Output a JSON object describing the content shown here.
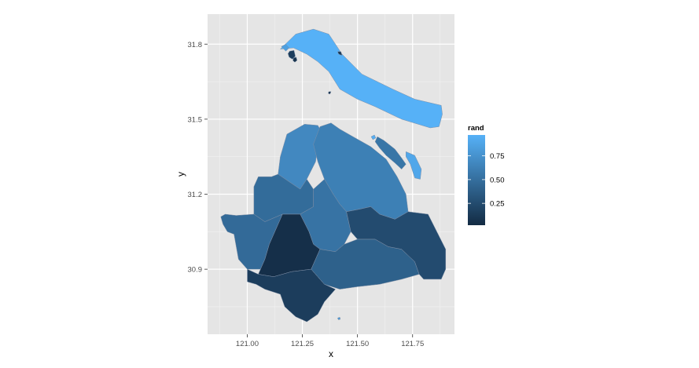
{
  "chart_data": {
    "type": "choropleth",
    "xlabel": "x",
    "ylabel": "y",
    "xlim": [
      120.82,
      121.94
    ],
    "ylim": [
      30.64,
      31.92
    ],
    "x_ticks": [
      121.0,
      121.25,
      121.5,
      121.75
    ],
    "x_tick_labels": [
      "121.00",
      "121.25",
      "121.50",
      "121.75"
    ],
    "y_ticks": [
      30.9,
      31.2,
      31.5,
      31.8
    ],
    "y_tick_labels": [
      "30.9",
      "31.2",
      "31.5",
      "31.8"
    ],
    "grid": true,
    "legend": {
      "title": "rand",
      "position": "right",
      "ticks": [
        0.25,
        0.5,
        0.75
      ],
      "tick_labels": [
        "0.25",
        "0.50",
        "0.75"
      ],
      "range": [
        0.02,
        0.97
      ],
      "color_low": "#132b43",
      "color_high": "#56b1f7"
    },
    "regions": [
      {
        "id": "chongming-island",
        "value": 0.97,
        "outline": [
          [
            121.15,
            31.78
          ],
          [
            121.22,
            31.84
          ],
          [
            121.3,
            31.86
          ],
          [
            121.37,
            31.84
          ],
          [
            121.43,
            31.76
          ],
          [
            121.52,
            31.68
          ],
          [
            121.66,
            31.62
          ],
          [
            121.76,
            31.58
          ],
          [
            121.88,
            31.555
          ],
          [
            121.885,
            31.52
          ],
          [
            121.87,
            31.47
          ],
          [
            121.83,
            31.465
          ],
          [
            121.7,
            31.5
          ],
          [
            121.58,
            31.55
          ],
          [
            121.5,
            31.58
          ],
          [
            121.42,
            31.62
          ],
          [
            121.37,
            31.69
          ],
          [
            121.32,
            31.73
          ],
          [
            121.27,
            31.76
          ],
          [
            121.21,
            31.785
          ]
        ]
      },
      {
        "id": "island-west-tip",
        "value": 0.85,
        "outline": [
          [
            121.155,
            31.79
          ],
          [
            121.175,
            31.8
          ],
          [
            121.19,
            31.785
          ],
          [
            121.175,
            31.772
          ]
        ]
      },
      {
        "id": "small-island-west",
        "value": 0.15,
        "outline": [
          [
            121.192,
            31.772
          ],
          [
            121.212,
            31.775
          ],
          [
            121.218,
            31.752
          ],
          [
            121.205,
            31.74
          ],
          [
            121.19,
            31.748
          ],
          [
            121.185,
            31.762
          ]
        ]
      },
      {
        "id": "small-island-east",
        "value": 0.08,
        "outline": [
          [
            121.21,
            31.745
          ],
          [
            121.222,
            31.748
          ],
          [
            121.226,
            31.735
          ],
          [
            121.216,
            31.728
          ],
          [
            121.207,
            31.734
          ]
        ]
      },
      {
        "id": "islet-north",
        "value": 0.12,
        "outline": [
          [
            121.41,
            31.77
          ],
          [
            121.425,
            31.77
          ],
          [
            121.43,
            31.755
          ],
          [
            121.415,
            31.76
          ]
        ]
      },
      {
        "id": "islet-center",
        "value": 0.08,
        "outline": [
          [
            121.37,
            31.61
          ],
          [
            121.38,
            31.61
          ],
          [
            121.375,
            31.6
          ],
          [
            121.367,
            31.603
          ]
        ]
      },
      {
        "id": "changxing-island",
        "value": 0.55,
        "outline": [
          [
            121.59,
            31.43
          ],
          [
            121.62,
            31.415
          ],
          [
            121.67,
            31.38
          ],
          [
            121.7,
            31.345
          ],
          [
            121.72,
            31.32
          ],
          [
            121.7,
            31.3
          ],
          [
            121.67,
            31.325
          ],
          [
            121.63,
            31.355
          ],
          [
            121.6,
            31.385
          ],
          [
            121.58,
            31.41
          ]
        ]
      },
      {
        "id": "hengsha-island",
        "value": 0.9,
        "outline": [
          [
            121.72,
            31.37
          ],
          [
            121.76,
            31.355
          ],
          [
            121.79,
            31.3
          ],
          [
            121.785,
            31.26
          ],
          [
            121.76,
            31.265
          ],
          [
            121.74,
            31.32
          ],
          [
            121.72,
            31.35
          ]
        ]
      },
      {
        "id": "islet-yangtze",
        "value": 0.95,
        "outline": [
          [
            121.562,
            31.43
          ],
          [
            121.577,
            31.437
          ],
          [
            121.583,
            31.425
          ],
          [
            121.57,
            31.418
          ]
        ]
      },
      {
        "id": "baoshan",
        "value": 0.68,
        "outline": [
          [
            121.14,
            31.28
          ],
          [
            121.15,
            31.35
          ],
          [
            121.18,
            31.44
          ],
          [
            121.26,
            31.48
          ],
          [
            121.32,
            31.475
          ],
          [
            121.33,
            31.46
          ],
          [
            121.31,
            31.33
          ],
          [
            121.27,
            31.26
          ],
          [
            121.24,
            31.22
          ],
          [
            121.19,
            31.25
          ]
        ]
      },
      {
        "id": "pudong-north",
        "value": 0.62,
        "outline": [
          [
            121.3,
            31.4
          ],
          [
            121.33,
            31.47
          ],
          [
            121.38,
            31.485
          ],
          [
            121.42,
            31.46
          ],
          [
            121.48,
            31.43
          ],
          [
            121.56,
            31.39
          ],
          [
            121.63,
            31.34
          ],
          [
            121.68,
            31.27
          ],
          [
            121.72,
            31.2
          ],
          [
            121.73,
            31.13
          ],
          [
            121.67,
            31.1
          ],
          [
            121.6,
            31.12
          ],
          [
            121.56,
            31.15
          ],
          [
            121.51,
            31.14
          ],
          [
            121.45,
            31.13
          ],
          [
            121.42,
            31.16
          ],
          [
            121.39,
            31.2
          ],
          [
            121.35,
            31.26
          ],
          [
            121.32,
            31.33
          ]
        ]
      },
      {
        "id": "jiading",
        "value": 0.48,
        "outline": [
          [
            121.03,
            31.23
          ],
          [
            121.05,
            31.27
          ],
          [
            121.11,
            31.27
          ],
          [
            121.14,
            31.28
          ],
          [
            121.19,
            31.25
          ],
          [
            121.24,
            31.22
          ],
          [
            121.27,
            31.26
          ],
          [
            121.3,
            31.22
          ],
          [
            121.3,
            31.15
          ],
          [
            121.24,
            31.12
          ],
          [
            121.16,
            31.12
          ],
          [
            121.08,
            31.09
          ],
          [
            121.03,
            31.12
          ]
        ]
      },
      {
        "id": "qingpu",
        "value": 0.47,
        "outline": [
          [
            120.88,
            31.11
          ],
          [
            120.9,
            31.12
          ],
          [
            120.95,
            31.115
          ],
          [
            121.03,
            31.12
          ],
          [
            121.08,
            31.09
          ],
          [
            121.16,
            31.12
          ],
          [
            121.1,
            31.0
          ],
          [
            121.08,
            30.94
          ],
          [
            121.06,
            30.9
          ],
          [
            121.0,
            30.9
          ],
          [
            120.96,
            30.94
          ],
          [
            120.94,
            31.04
          ],
          [
            120.91,
            31.05
          ],
          [
            120.89,
            31.08
          ]
        ]
      },
      {
        "id": "minhang",
        "value": 0.53,
        "outline": [
          [
            121.24,
            31.12
          ],
          [
            121.3,
            31.15
          ],
          [
            121.3,
            31.22
          ],
          [
            121.35,
            31.26
          ],
          [
            121.39,
            31.2
          ],
          [
            121.42,
            31.16
          ],
          [
            121.45,
            31.13
          ],
          [
            121.47,
            31.05
          ],
          [
            121.44,
            31.0
          ],
          [
            121.4,
            30.97
          ],
          [
            121.33,
            30.98
          ],
          [
            121.3,
            31.0
          ],
          [
            121.28,
            31.05
          ]
        ]
      },
      {
        "id": "songjiang",
        "value": 0.05,
        "outline": [
          [
            121.06,
            30.9
          ],
          [
            121.08,
            30.94
          ],
          [
            121.1,
            31.0
          ],
          [
            121.16,
            31.12
          ],
          [
            121.24,
            31.12
          ],
          [
            121.28,
            31.05
          ],
          [
            121.3,
            31.0
          ],
          [
            121.33,
            30.98
          ],
          [
            121.29,
            30.9
          ],
          [
            121.2,
            30.89
          ],
          [
            121.12,
            30.87
          ],
          [
            121.05,
            30.88
          ]
        ]
      },
      {
        "id": "jinshan",
        "value": 0.15,
        "outline": [
          [
            121.0,
            30.9
          ],
          [
            121.05,
            30.88
          ],
          [
            121.12,
            30.87
          ],
          [
            121.2,
            30.89
          ],
          [
            121.29,
            30.9
          ],
          [
            121.35,
            30.84
          ],
          [
            121.4,
            30.82
          ],
          [
            121.35,
            30.77
          ],
          [
            121.32,
            30.72
          ],
          [
            121.27,
            30.69
          ],
          [
            121.22,
            30.71
          ],
          [
            121.17,
            30.75
          ],
          [
            121.15,
            30.8
          ],
          [
            121.08,
            30.82
          ],
          [
            121.04,
            30.84
          ],
          [
            121.0,
            30.85
          ]
        ]
      },
      {
        "id": "fengxian",
        "value": 0.4,
        "outline": [
          [
            121.29,
            30.9
          ],
          [
            121.33,
            30.98
          ],
          [
            121.4,
            30.97
          ],
          [
            121.44,
            31.0
          ],
          [
            121.5,
            31.02
          ],
          [
            121.58,
            31.02
          ],
          [
            121.64,
            30.99
          ],
          [
            121.7,
            30.98
          ],
          [
            121.76,
            30.93
          ],
          [
            121.78,
            30.88
          ],
          [
            121.7,
            30.86
          ],
          [
            121.6,
            30.84
          ],
          [
            121.5,
            30.83
          ],
          [
            121.42,
            30.82
          ],
          [
            121.35,
            30.84
          ]
        ]
      },
      {
        "id": "pudong-south",
        "value": 0.25,
        "outline": [
          [
            121.45,
            31.13
          ],
          [
            121.51,
            31.14
          ],
          [
            121.56,
            31.15
          ],
          [
            121.6,
            31.12
          ],
          [
            121.67,
            31.1
          ],
          [
            121.73,
            31.13
          ],
          [
            121.82,
            31.12
          ],
          [
            121.86,
            31.05
          ],
          [
            121.9,
            30.98
          ],
          [
            121.9,
            30.9
          ],
          [
            121.88,
            30.86
          ],
          [
            121.8,
            30.86
          ],
          [
            121.78,
            30.88
          ],
          [
            121.76,
            30.93
          ],
          [
            121.7,
            30.98
          ],
          [
            121.64,
            30.99
          ],
          [
            121.58,
            31.02
          ],
          [
            121.5,
            31.02
          ],
          [
            121.47,
            31.05
          ]
        ]
      },
      {
        "id": "islet-south",
        "value": 0.8,
        "outline": [
          [
            121.41,
            30.705
          ],
          [
            121.42,
            30.708
          ],
          [
            121.422,
            30.7
          ],
          [
            121.413,
            30.698
          ]
        ]
      }
    ]
  }
}
